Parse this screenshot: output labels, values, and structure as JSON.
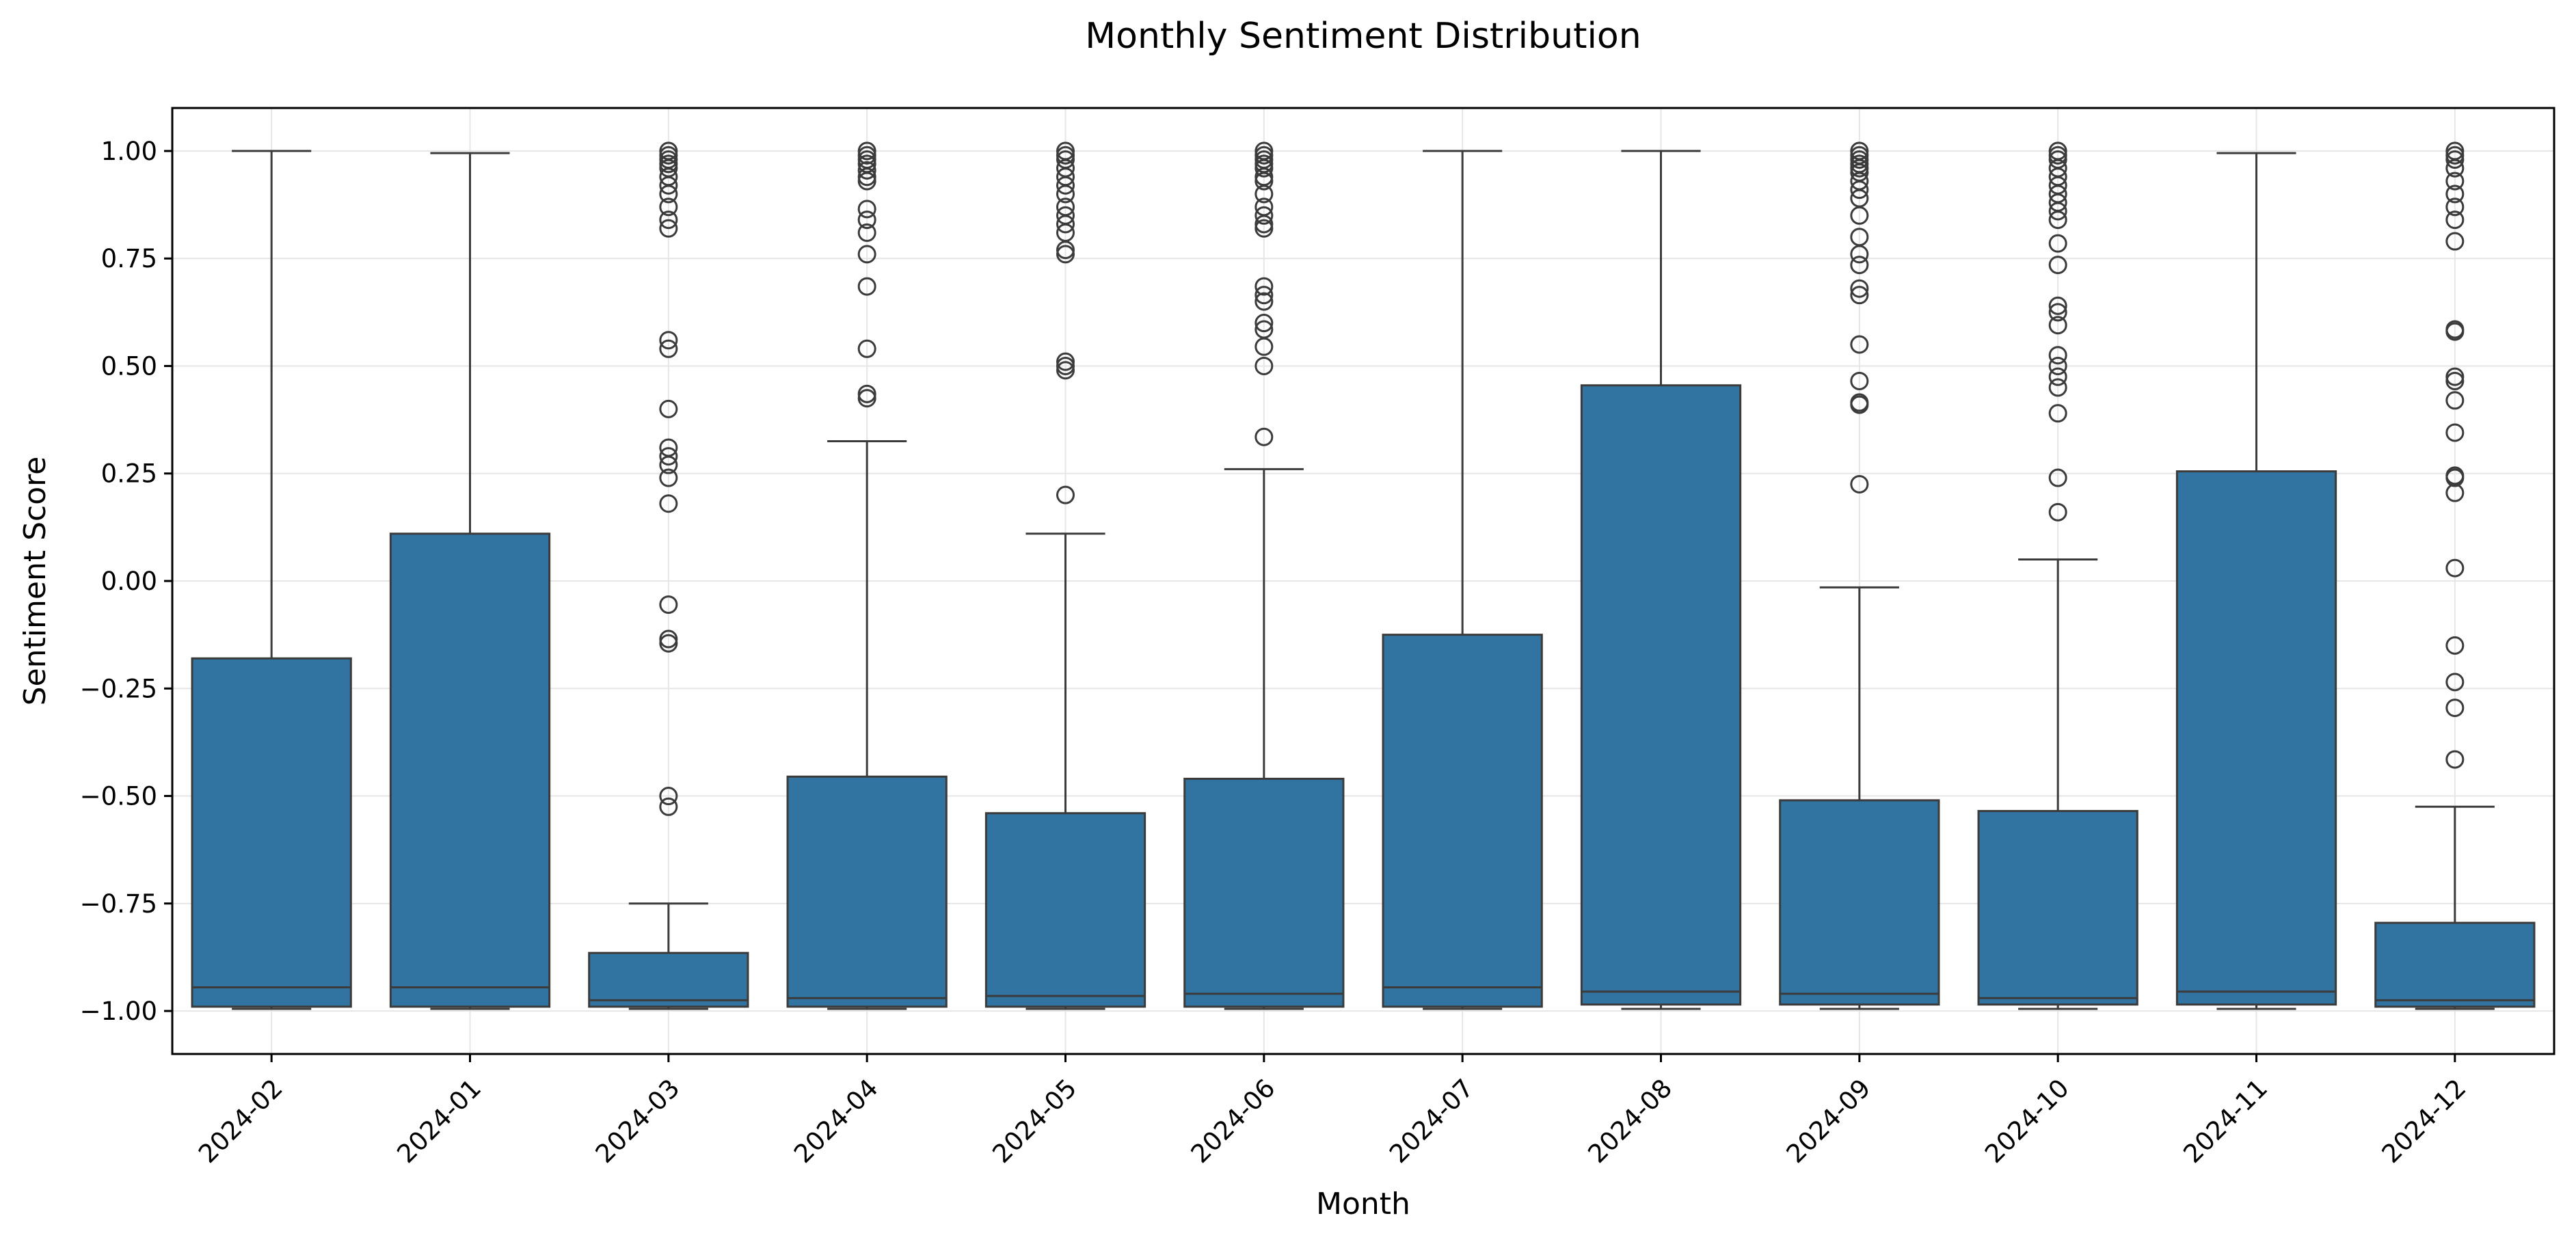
{
  "chart_data": {
    "type": "box",
    "title": "Monthly Sentiment Distribution",
    "xlabel": "Month",
    "ylabel": "Sentiment Score",
    "ylim": [
      -1.1,
      1.1
    ],
    "yticks": [
      1.0,
      0.75,
      0.5,
      0.25,
      0.0,
      -0.25,
      -0.5,
      -0.75,
      -1.0
    ],
    "ytick_labels": [
      "1.00",
      "0.75",
      "0.50",
      "0.25",
      "0.00",
      "−0.25",
      "−0.50",
      "−0.75",
      "−1.00"
    ],
    "grid": true,
    "legend": "none",
    "box_color": "#3274a1",
    "edge_color": "#3b3b3b",
    "categories": [
      "2024-02",
      "2024-01",
      "2024-03",
      "2024-04",
      "2024-05",
      "2024-06",
      "2024-07",
      "2024-08",
      "2024-09",
      "2024-10",
      "2024-11",
      "2024-12"
    ],
    "boxes": [
      {
        "label": "2024-02",
        "whisker_low": -0.995,
        "q1": -0.99,
        "median": -0.945,
        "q3": -0.18,
        "whisker_high": 1.0,
        "outliers": []
      },
      {
        "label": "2024-01",
        "whisker_low": -0.995,
        "q1": -0.99,
        "median": -0.945,
        "q3": 0.11,
        "whisker_high": 0.995,
        "outliers": []
      },
      {
        "label": "2024-03",
        "whisker_low": -0.995,
        "q1": -0.99,
        "median": -0.975,
        "q3": -0.865,
        "whisker_high": -0.75,
        "outliers": [
          1.0,
          0.99,
          0.98,
          0.97,
          0.96,
          0.94,
          0.92,
          0.9,
          0.87,
          0.84,
          0.82,
          0.56,
          0.54,
          0.4,
          0.31,
          0.29,
          0.27,
          0.24,
          0.18,
          -0.055,
          -0.135,
          -0.145,
          -0.5,
          -0.525
        ]
      },
      {
        "label": "2024-04",
        "whisker_low": -0.995,
        "q1": -0.99,
        "median": -0.97,
        "q3": -0.455,
        "whisker_high": 0.325,
        "outliers": [
          1.0,
          0.99,
          0.98,
          0.97,
          0.955,
          0.94,
          0.93,
          0.865,
          0.84,
          0.81,
          0.76,
          0.685,
          0.54,
          0.435,
          0.425
        ]
      },
      {
        "label": "2024-05",
        "whisker_low": -0.995,
        "q1": -0.99,
        "median": -0.965,
        "q3": -0.54,
        "whisker_high": 0.11,
        "outliers": [
          1.0,
          0.99,
          0.98,
          0.96,
          0.94,
          0.92,
          0.9,
          0.87,
          0.85,
          0.83,
          0.81,
          0.77,
          0.76,
          0.51,
          0.5,
          0.49,
          0.2
        ]
      },
      {
        "label": "2024-06",
        "whisker_low": -0.995,
        "q1": -0.99,
        "median": -0.96,
        "q3": -0.46,
        "whisker_high": 0.26,
        "outliers": [
          1.0,
          0.99,
          0.98,
          0.97,
          0.96,
          0.94,
          0.93,
          0.9,
          0.87,
          0.85,
          0.83,
          0.82,
          0.685,
          0.665,
          0.65,
          0.6,
          0.585,
          0.545,
          0.5,
          0.335
        ]
      },
      {
        "label": "2024-07",
        "whisker_low": -0.995,
        "q1": -0.99,
        "median": -0.945,
        "q3": -0.125,
        "whisker_high": 1.0,
        "outliers": []
      },
      {
        "label": "2024-08",
        "whisker_low": -0.995,
        "q1": -0.985,
        "median": -0.955,
        "q3": 0.455,
        "whisker_high": 1.0,
        "outliers": []
      },
      {
        "label": "2024-09",
        "whisker_low": -0.995,
        "q1": -0.985,
        "median": -0.96,
        "q3": -0.51,
        "whisker_high": -0.015,
        "outliers": [
          1.0,
          0.99,
          0.98,
          0.97,
          0.96,
          0.95,
          0.93,
          0.91,
          0.89,
          0.85,
          0.8,
          0.76,
          0.735,
          0.68,
          0.665,
          0.55,
          0.465,
          0.415,
          0.41,
          0.225
        ]
      },
      {
        "label": "2024-10",
        "whisker_low": -0.995,
        "q1": -0.985,
        "median": -0.97,
        "q3": -0.535,
        "whisker_high": 0.05,
        "outliers": [
          1.0,
          0.99,
          0.98,
          0.96,
          0.94,
          0.92,
          0.9,
          0.88,
          0.86,
          0.84,
          0.785,
          0.735,
          0.64,
          0.625,
          0.595,
          0.525,
          0.5,
          0.475,
          0.45,
          0.39,
          0.24,
          0.16
        ]
      },
      {
        "label": "2024-11",
        "whisker_low": -0.995,
        "q1": -0.985,
        "median": -0.955,
        "q3": 0.255,
        "whisker_high": 0.995,
        "outliers": []
      },
      {
        "label": "2024-12",
        "whisker_low": -0.995,
        "q1": -0.99,
        "median": -0.975,
        "q3": -0.795,
        "whisker_high": -0.525,
        "outliers": [
          1.0,
          0.99,
          0.98,
          0.96,
          0.93,
          0.9,
          0.87,
          0.84,
          0.79,
          0.585,
          0.58,
          0.475,
          0.465,
          0.42,
          0.345,
          0.245,
          0.24,
          0.205,
          0.03,
          -0.15,
          -0.235,
          -0.295,
          -0.415
        ]
      }
    ]
  }
}
